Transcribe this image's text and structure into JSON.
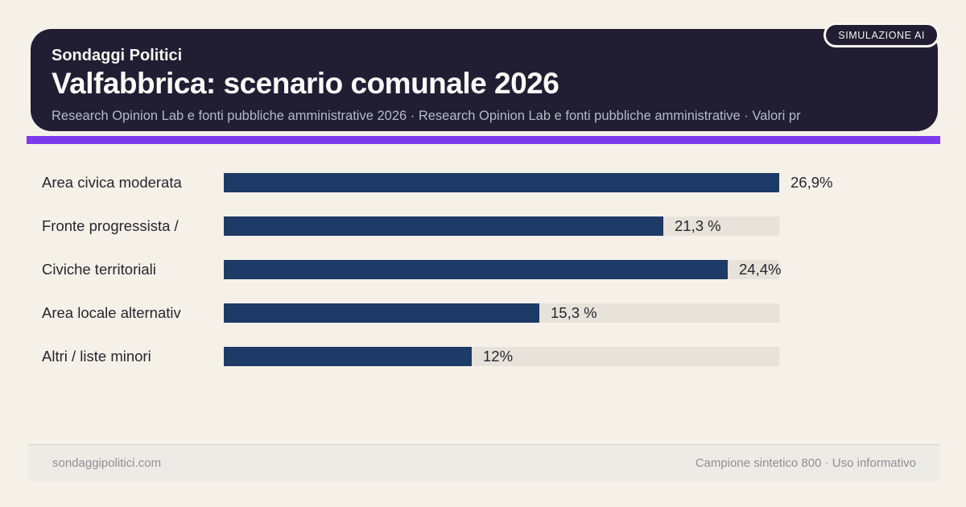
{
  "badge": {
    "label": "SIMULAZIONE AI"
  },
  "header": {
    "kicker": "Sondaggi Politici",
    "title": "Valfabbrica: scenario comunale 2026",
    "subtitle": "Research Opinion Lab e fonti pubbliche amministrative 2026 · Research Opinion Lab e fonti pubbliche amministrative · Valori pr"
  },
  "chart_data": {
    "type": "bar",
    "orientation": "horizontal",
    "title": "Valfabbrica: scenario comunale 2026",
    "categories": [
      "Area civica moderata",
      "Fronte progressista /",
      "Civiche territoriali",
      "Area locale alternativ",
      "Altri / liste minori"
    ],
    "values": [
      26.9,
      21.3,
      24.4,
      15.3,
      12
    ],
    "value_labels": [
      "26,9%",
      "21,3 %",
      "24,4%",
      "15,3 %",
      "12%"
    ],
    "unit": "%",
    "xlim": [
      0,
      26.9
    ],
    "grid": false,
    "legend": false,
    "bar_color": "#1e3a66",
    "track_color": "#e7e2da"
  },
  "footer": {
    "left": "sondaggipolitici.com",
    "right": "Campione sintetico 800 · Uso informativo"
  },
  "colors": {
    "background": "#f5f1e9",
    "header_background": "#211e33",
    "accent": "#7c3aed",
    "bar": "#1e3a66",
    "track": "#e7e2da",
    "text_dark": "#26262e",
    "text_muted": "#8f8f96",
    "subtitle": "#b6b9c6"
  },
  "layout": {
    "row_tops": [
      215,
      269,
      323,
      377,
      431
    ],
    "track_left": 278,
    "track_width": 690,
    "value_gap": 14
  }
}
